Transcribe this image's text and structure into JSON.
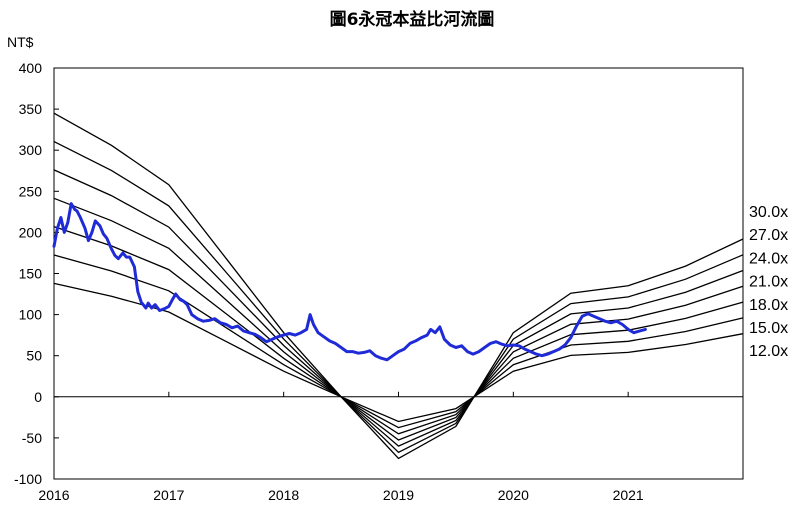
{
  "chart_data": {
    "type": "line",
    "title": "圖6永冠本益比河流圖",
    "ylabel": "NT$",
    "xlabel": "",
    "ylim": [
      -100,
      400
    ],
    "xlim": [
      2016.0,
      2022.0
    ],
    "yticks": [
      -100,
      -50,
      0,
      50,
      100,
      150,
      200,
      250,
      300,
      350,
      400
    ],
    "xticks": [
      {
        "label": "2016",
        "value": 2016.0
      },
      {
        "label": "2017",
        "value": 2017.0
      },
      {
        "label": "2018",
        "value": 2018.0
      },
      {
        "label": "2019",
        "value": 2019.0
      },
      {
        "label": "2020",
        "value": 2020.0
      },
      {
        "label": "2021",
        "value": 2021.0
      }
    ],
    "grid": false,
    "eps_x": [
      2016.0,
      2016.5,
      2017.0,
      2017.5,
      2018.0,
      2018.5,
      2019.0,
      2019.5,
      2020.0,
      2020.5,
      2021.0,
      2021.5,
      2022.0
    ],
    "eps": [
      11.5,
      10.2,
      8.6,
      5.6,
      2.6,
      0.0,
      -2.5,
      -1.2,
      2.6,
      4.2,
      4.5,
      5.3,
      6.4
    ],
    "bands": [
      {
        "label": "30.0x",
        "multiple": 30
      },
      {
        "label": "27.0x",
        "multiple": 27
      },
      {
        "label": "24.0x",
        "multiple": 24
      },
      {
        "label": "21.0x",
        "multiple": 21
      },
      {
        "label": "18.0x",
        "multiple": 18
      },
      {
        "label": "15.0x",
        "multiple": 15
      },
      {
        "label": "12.0x",
        "multiple": 12
      }
    ],
    "price": {
      "color": "#1f2bd6",
      "x": [
        2016.0,
        2016.03,
        2016.06,
        2016.09,
        2016.12,
        2016.15,
        2016.18,
        2016.2,
        2016.23,
        2016.27,
        2016.3,
        2016.33,
        2016.36,
        2016.4,
        2016.43,
        2016.46,
        2016.5,
        2016.53,
        2016.56,
        2016.6,
        2016.63,
        2016.66,
        2016.7,
        2016.73,
        2016.76,
        2016.8,
        2016.82,
        2016.85,
        2016.88,
        2016.92,
        2016.96,
        2017.0,
        2017.03,
        2017.06,
        2017.1,
        2017.13,
        2017.16,
        2017.2,
        2017.25,
        2017.3,
        2017.35,
        2017.4,
        2017.45,
        2017.5,
        2017.55,
        2017.6,
        2017.65,
        2017.7,
        2017.75,
        2017.8,
        2017.85,
        2017.9,
        2017.95,
        2018.0,
        2018.05,
        2018.1,
        2018.15,
        2018.2,
        2018.23,
        2018.26,
        2018.3,
        2018.35,
        2018.4,
        2018.45,
        2018.5,
        2018.55,
        2018.6,
        2018.65,
        2018.7,
        2018.75,
        2018.8,
        2018.85,
        2018.9,
        2018.95,
        2019.0,
        2019.05,
        2019.1,
        2019.15,
        2019.2,
        2019.25,
        2019.28,
        2019.32,
        2019.36,
        2019.4,
        2019.45,
        2019.5,
        2019.55,
        2019.6,
        2019.65,
        2019.7,
        2019.75,
        2019.8,
        2019.85,
        2019.9,
        2019.95,
        2020.0,
        2020.05,
        2020.1,
        2020.15,
        2020.2,
        2020.25,
        2020.3,
        2020.35,
        2020.4,
        2020.45,
        2020.5,
        2020.55,
        2020.6,
        2020.65,
        2020.7,
        2020.75,
        2020.8,
        2020.85,
        2020.9,
        2020.95,
        2021.0,
        2021.05,
        2021.1,
        2021.15
      ],
      "y": [
        183,
        205,
        218,
        200,
        212,
        235,
        228,
        226,
        218,
        205,
        190,
        200,
        214,
        208,
        198,
        193,
        180,
        172,
        168,
        175,
        170,
        170,
        158,
        128,
        115,
        108,
        114,
        108,
        112,
        105,
        107,
        110,
        118,
        125,
        118,
        116,
        112,
        100,
        95,
        92,
        93,
        95,
        90,
        88,
        84,
        86,
        80,
        78,
        76,
        72,
        67,
        70,
        73,
        75,
        77,
        75,
        78,
        82,
        100,
        88,
        78,
        73,
        68,
        65,
        60,
        55,
        55,
        53,
        54,
        56,
        50,
        47,
        45,
        50,
        55,
        58,
        65,
        68,
        72,
        75,
        82,
        78,
        85,
        70,
        63,
        60,
        62,
        55,
        52,
        55,
        60,
        65,
        67,
        64,
        62,
        63,
        62,
        58,
        55,
        52,
        50,
        52,
        55,
        58,
        63,
        72,
        86,
        98,
        101,
        98,
        95,
        92,
        90,
        92,
        88,
        82,
        78,
        80,
        82
      ]
    }
  }
}
